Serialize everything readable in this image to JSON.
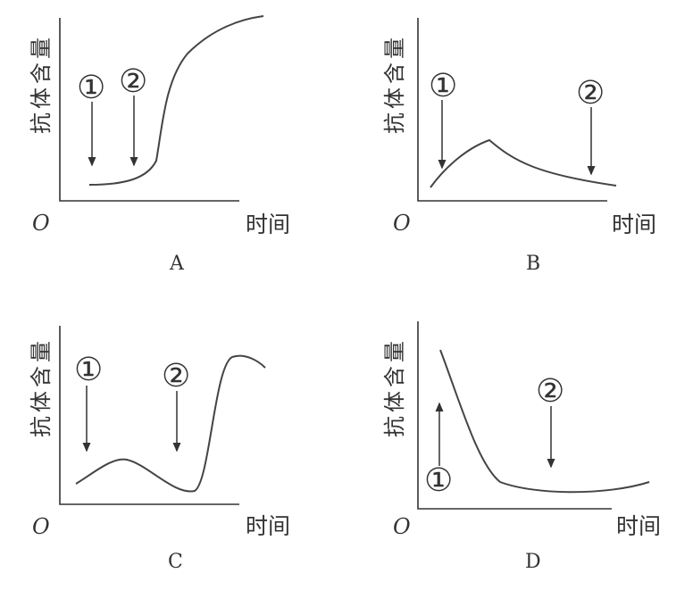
{
  "panels": [
    {
      "label": "A",
      "y_axis": "抗体含量",
      "x_axis": "时间",
      "origin": "O",
      "markers": [
        "①",
        "②"
      ]
    },
    {
      "label": "B",
      "y_axis": "抗体含量",
      "x_axis": "时间",
      "origin": "O",
      "markers": [
        "①",
        "②"
      ]
    },
    {
      "label": "C",
      "y_axis": "抗体含量",
      "x_axis": "时间",
      "origin": "O",
      "markers": [
        "①",
        "②"
      ]
    },
    {
      "label": "D",
      "y_axis": "抗体含量",
      "x_axis": "时间",
      "origin": "O",
      "markers": [
        "①",
        "②"
      ]
    }
  ]
}
